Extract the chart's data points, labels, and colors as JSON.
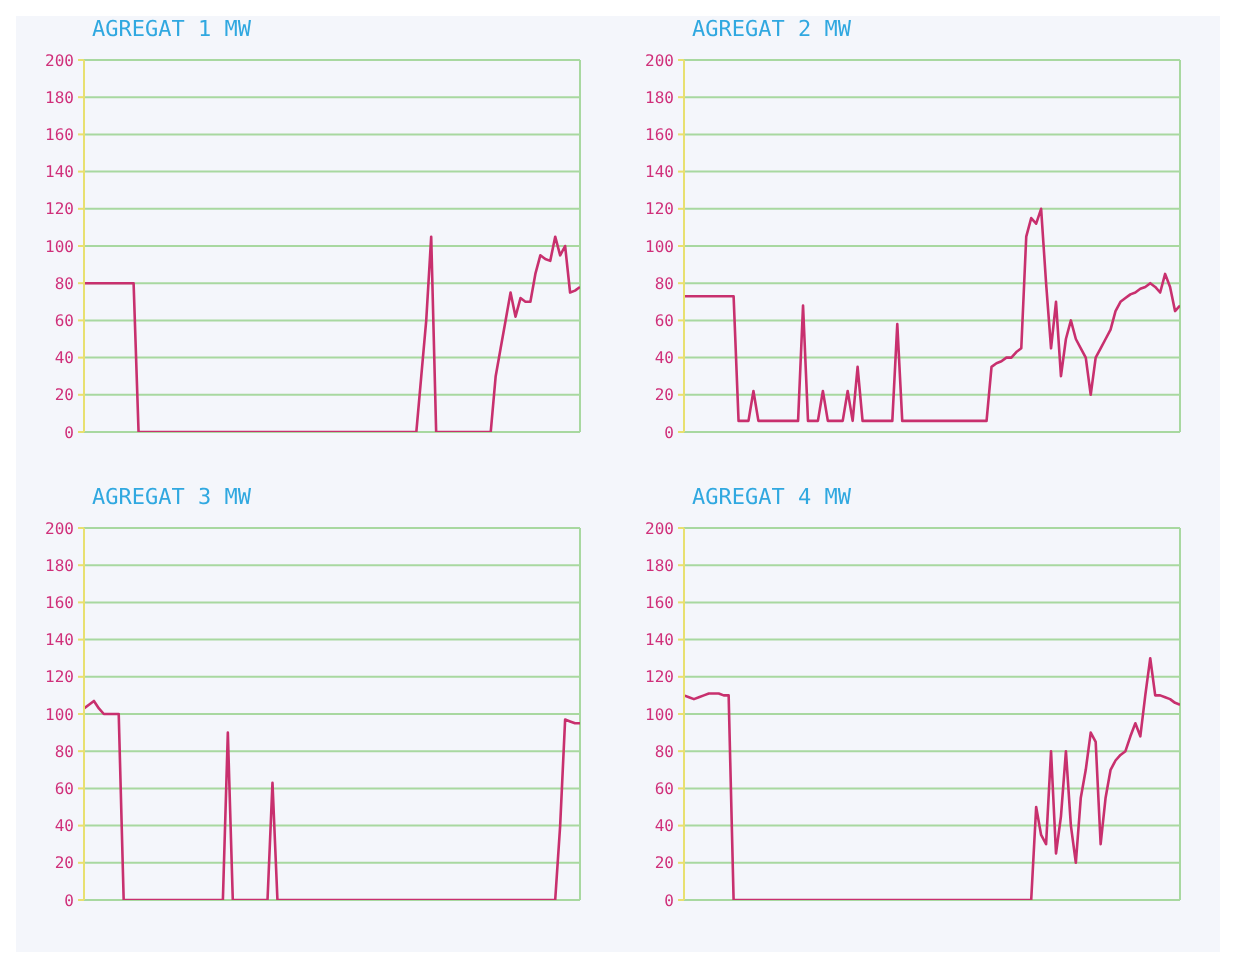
{
  "chart_data": [
    {
      "type": "line",
      "title": "AGREGAT 1 MW",
      "color": "#c8306e",
      "ylim": [
        0,
        200
      ],
      "yticks": [
        0,
        20,
        40,
        60,
        80,
        100,
        120,
        140,
        160,
        180,
        200
      ],
      "grid": true,
      "tick_labels": "y",
      "categories": [
        null,
        null,
        null,
        null,
        null,
        null,
        null,
        null,
        null,
        null,
        null,
        null,
        null,
        null,
        null,
        null,
        null,
        null,
        null,
        null,
        null,
        null,
        null,
        null,
        null,
        null,
        null,
        null,
        null,
        null,
        null,
        null,
        null,
        null,
        null,
        null,
        null,
        null,
        null,
        null,
        null,
        null,
        null,
        null,
        null,
        null,
        null,
        null,
        null,
        null,
        null,
        null,
        null,
        null,
        null,
        null,
        null,
        null,
        null,
        null,
        null,
        null,
        null,
        null,
        null,
        null,
        null,
        null,
        null,
        null,
        null,
        null,
        null,
        null,
        null,
        null,
        null,
        null,
        null,
        null,
        null,
        null,
        null,
        null,
        null,
        null,
        null,
        null,
        null,
        null,
        null,
        null,
        null,
        null,
        null,
        null,
        null,
        null,
        null,
        null,
        null
      ],
      "values": [
        80,
        80,
        80,
        80,
        80,
        80,
        80,
        80,
        80,
        80,
        80,
        0,
        0,
        0,
        0,
        0,
        0,
        0,
        0,
        0,
        0,
        0,
        0,
        0,
        0,
        0,
        0,
        0,
        0,
        0,
        0,
        0,
        0,
        0,
        0,
        0,
        0,
        0,
        0,
        0,
        0,
        0,
        0,
        0,
        0,
        0,
        0,
        0,
        0,
        0,
        0,
        0,
        0,
        0,
        0,
        0,
        0,
        0,
        0,
        0,
        0,
        0,
        0,
        0,
        0,
        0,
        0,
        0,
        30,
        60,
        105,
        0,
        0,
        0,
        0,
        0,
        0,
        0,
        0,
        0,
        0,
        0,
        0,
        30,
        45,
        60,
        75,
        62,
        72,
        70,
        70,
        85,
        95,
        93,
        92,
        105,
        95,
        100,
        75,
        76,
        78
      ]
    },
    {
      "type": "line",
      "title": "AGREGAT 2 MW",
      "color": "#c8306e",
      "ylim": [
        0,
        200
      ],
      "yticks": [
        0,
        20,
        40,
        60,
        80,
        100,
        120,
        140,
        160,
        180,
        200
      ],
      "grid": true,
      "tick_labels": "y",
      "categories": [
        null,
        null,
        null,
        null,
        null,
        null,
        null,
        null,
        null,
        null,
        null,
        null,
        null,
        null,
        null,
        null,
        null,
        null,
        null,
        null,
        null,
        null,
        null,
        null,
        null,
        null,
        null,
        null,
        null,
        null,
        null,
        null,
        null,
        null,
        null,
        null,
        null,
        null,
        null,
        null,
        null,
        null,
        null,
        null,
        null,
        null,
        null,
        null,
        null,
        null,
        null,
        null,
        null,
        null,
        null,
        null,
        null,
        null,
        null,
        null,
        null,
        null,
        null,
        null,
        null,
        null,
        null,
        null,
        null,
        null,
        null,
        null,
        null,
        null,
        null,
        null,
        null,
        null,
        null,
        null,
        null,
        null,
        null,
        null,
        null,
        null,
        null,
        null,
        null,
        null,
        null,
        null,
        null,
        null,
        null,
        null,
        null,
        null,
        null,
        null,
        null
      ],
      "values": [
        73,
        73,
        73,
        73,
        73,
        73,
        73,
        73,
        73,
        73,
        73,
        6,
        6,
        6,
        22,
        6,
        6,
        6,
        6,
        6,
        6,
        6,
        6,
        6,
        68,
        6,
        6,
        6,
        22,
        6,
        6,
        6,
        6,
        22,
        6,
        35,
        6,
        6,
        6,
        6,
        6,
        6,
        6,
        58,
        6,
        6,
        6,
        6,
        6,
        6,
        6,
        6,
        6,
        6,
        6,
        6,
        6,
        6,
        6,
        6,
        6,
        6,
        35,
        37,
        38,
        40,
        40,
        43,
        45,
        105,
        115,
        112,
        120,
        80,
        45,
        70,
        30,
        50,
        60,
        50,
        45,
        40,
        20,
        40,
        45,
        50,
        55,
        65,
        70,
        72,
        74,
        75,
        77,
        78,
        80,
        78,
        75,
        85,
        78,
        65,
        68
      ]
    },
    {
      "type": "line",
      "title": "AGREGAT 3 MW",
      "color": "#c8306e",
      "ylim": [
        0,
        200
      ],
      "yticks": [
        0,
        20,
        40,
        60,
        80,
        100,
        120,
        140,
        160,
        180,
        200
      ],
      "grid": true,
      "tick_labels": "y",
      "categories": [
        null,
        null,
        null,
        null,
        null,
        null,
        null,
        null,
        null,
        null,
        null,
        null,
        null,
        null,
        null,
        null,
        null,
        null,
        null,
        null,
        null,
        null,
        null,
        null,
        null,
        null,
        null,
        null,
        null,
        null,
        null,
        null,
        null,
        null,
        null,
        null,
        null,
        null,
        null,
        null,
        null,
        null,
        null,
        null,
        null,
        null,
        null,
        null,
        null,
        null,
        null,
        null,
        null,
        null,
        null,
        null,
        null,
        null,
        null,
        null,
        null,
        null,
        null,
        null,
        null,
        null,
        null,
        null,
        null,
        null,
        null,
        null,
        null,
        null,
        null,
        null,
        null,
        null,
        null,
        null,
        null,
        null,
        null,
        null,
        null,
        null,
        null,
        null,
        null,
        null,
        null,
        null,
        null,
        null,
        null,
        null,
        null,
        null,
        null,
        null,
        null
      ],
      "values": [
        103,
        105,
        107,
        103,
        100,
        100,
        100,
        100,
        0,
        0,
        0,
        0,
        0,
        0,
        0,
        0,
        0,
        0,
        0,
        0,
        0,
        0,
        0,
        0,
        0,
        0,
        0,
        0,
        0,
        90,
        0,
        0,
        0,
        0,
        0,
        0,
        0,
        0,
        63,
        0,
        0,
        0,
        0,
        0,
        0,
        0,
        0,
        0,
        0,
        0,
        0,
        0,
        0,
        0,
        0,
        0,
        0,
        0,
        0,
        0,
        0,
        0,
        0,
        0,
        0,
        0,
        0,
        0,
        0,
        0,
        0,
        0,
        0,
        0,
        0,
        0,
        0,
        0,
        0,
        0,
        0,
        0,
        0,
        0,
        0,
        0,
        0,
        0,
        0,
        0,
        0,
        0,
        0,
        0,
        0,
        0,
        40,
        97,
        96,
        95,
        95
      ]
    },
    {
      "type": "line",
      "title": "AGREGAT 4 MW",
      "color": "#c8306e",
      "ylim": [
        0,
        200
      ],
      "yticks": [
        0,
        20,
        40,
        60,
        80,
        100,
        120,
        140,
        160,
        180,
        200
      ],
      "grid": true,
      "tick_labels": "y",
      "categories": [
        null,
        null,
        null,
        null,
        null,
        null,
        null,
        null,
        null,
        null,
        null,
        null,
        null,
        null,
        null,
        null,
        null,
        null,
        null,
        null,
        null,
        null,
        null,
        null,
        null,
        null,
        null,
        null,
        null,
        null,
        null,
        null,
        null,
        null,
        null,
        null,
        null,
        null,
        null,
        null,
        null,
        null,
        null,
        null,
        null,
        null,
        null,
        null,
        null,
        null,
        null,
        null,
        null,
        null,
        null,
        null,
        null,
        null,
        null,
        null,
        null,
        null,
        null,
        null,
        null,
        null,
        null,
        null,
        null,
        null,
        null,
        null,
        null,
        null,
        null,
        null,
        null,
        null,
        null,
        null,
        null,
        null,
        null,
        null,
        null,
        null,
        null,
        null,
        null,
        null,
        null,
        null,
        null,
        null,
        null,
        null,
        null,
        null,
        null,
        null,
        null
      ],
      "values": [
        110,
        109,
        108,
        109,
        110,
        111,
        111,
        111,
        110,
        110,
        0,
        0,
        0,
        0,
        0,
        0,
        0,
        0,
        0,
        0,
        0,
        0,
        0,
        0,
        0,
        0,
        0,
        0,
        0,
        0,
        0,
        0,
        0,
        0,
        0,
        0,
        0,
        0,
        0,
        0,
        0,
        0,
        0,
        0,
        0,
        0,
        0,
        0,
        0,
        0,
        0,
        0,
        0,
        0,
        0,
        0,
        0,
        0,
        0,
        0,
        0,
        0,
        0,
        0,
        0,
        0,
        0,
        0,
        0,
        0,
        0,
        50,
        35,
        30,
        80,
        25,
        45,
        80,
        40,
        20,
        55,
        70,
        90,
        85,
        30,
        55,
        70,
        75,
        78,
        80,
        88,
        95,
        88,
        110,
        130,
        110,
        110,
        109,
        108,
        106,
        105
      ]
    }
  ]
}
